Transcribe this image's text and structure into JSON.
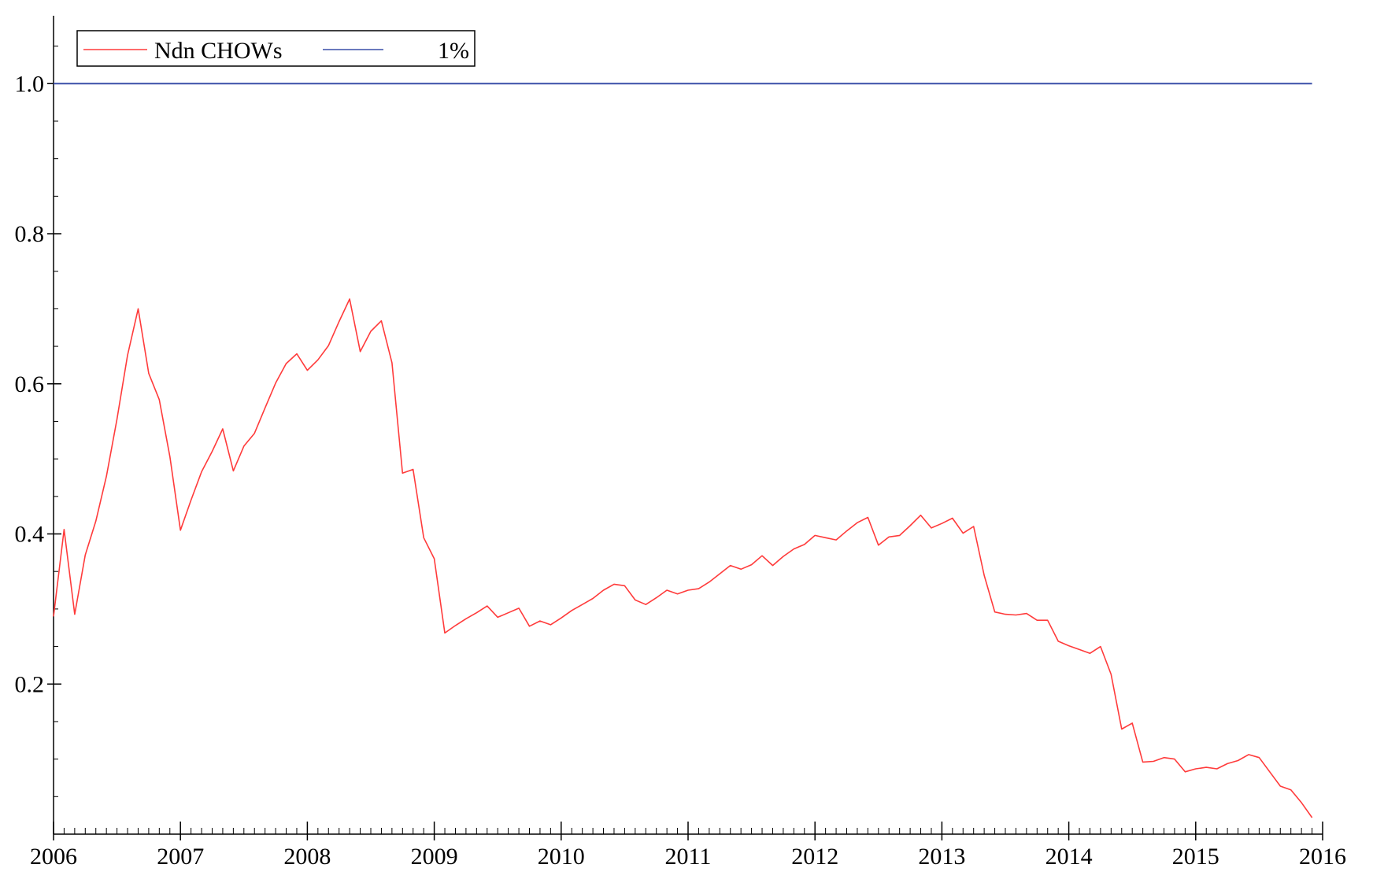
{
  "chart_data": {
    "type": "line",
    "title": "",
    "xlabel": "",
    "ylabel": "",
    "xlim": [
      2006.0,
      2016.0
    ],
    "ylim": [
      0.0,
      1.08
    ],
    "grid": false,
    "legend_position": "top-left",
    "x_ticks": [
      2006,
      2007,
      2008,
      2009,
      2010,
      2011,
      2012,
      2013,
      2014,
      2015,
      2016
    ],
    "x_tick_labels": [
      "2006",
      "2007",
      "2008",
      "2009",
      "2010",
      "2011",
      "2012",
      "2013",
      "2014",
      "2015",
      "2016"
    ],
    "y_ticks": [
      0.2,
      0.4,
      0.6,
      0.8,
      1.0
    ],
    "y_tick_labels": [
      "0.2",
      "0.4",
      "0.6",
      "0.8",
      "1.0"
    ],
    "colors": {
      "ndn": "#ff3b3b",
      "critical": "#3a4fa8"
    },
    "series": [
      {
        "name": "Ndn CHOWs",
        "color": "#ff3b3b",
        "x": [
          2006.0,
          2006.083,
          2006.167,
          2006.25,
          2006.333,
          2006.417,
          2006.5,
          2006.583,
          2006.667,
          2006.75,
          2006.833,
          2006.917,
          2007.0,
          2007.083,
          2007.167,
          2007.25,
          2007.333,
          2007.417,
          2007.5,
          2007.583,
          2007.667,
          2007.75,
          2007.833,
          2007.917,
          2008.0,
          2008.083,
          2008.167,
          2008.25,
          2008.333,
          2008.417,
          2008.5,
          2008.583,
          2008.667,
          2008.75,
          2008.833,
          2008.917,
          2009.0,
          2009.083,
          2009.167,
          2009.25,
          2009.333,
          2009.417,
          2009.5,
          2009.583,
          2009.667,
          2009.75,
          2009.833,
          2009.917,
          2010.0,
          2010.083,
          2010.167,
          2010.25,
          2010.333,
          2010.417,
          2010.5,
          2010.583,
          2010.667,
          2010.75,
          2010.833,
          2010.917,
          2011.0,
          2011.083,
          2011.167,
          2011.25,
          2011.333,
          2011.417,
          2011.5,
          2011.583,
          2011.667,
          2011.75,
          2011.833,
          2011.917,
          2012.0,
          2012.083,
          2012.167,
          2012.25,
          2012.333,
          2012.417,
          2012.5,
          2012.583,
          2012.667,
          2012.75,
          2012.833,
          2012.917,
          2013.0,
          2013.083,
          2013.167,
          2013.25,
          2013.333,
          2013.417,
          2013.5,
          2013.583,
          2013.667,
          2013.75,
          2013.833,
          2013.917,
          2014.0,
          2014.083,
          2014.167,
          2014.25,
          2014.333,
          2014.417,
          2014.5,
          2014.583,
          2014.667,
          2014.75,
          2014.833,
          2014.917,
          2015.0,
          2015.083,
          2015.167,
          2015.25,
          2015.333,
          2015.417,
          2015.5,
          2015.583,
          2015.667,
          2015.75,
          2015.833,
          2015.917
        ],
        "y": [
          0.29,
          0.406,
          0.293,
          0.372,
          0.417,
          0.477,
          0.553,
          0.638,
          0.7,
          0.614,
          0.579,
          0.503,
          0.405,
          0.445,
          0.483,
          0.51,
          0.54,
          0.484,
          0.517,
          0.534,
          0.568,
          0.601,
          0.627,
          0.64,
          0.618,
          0.632,
          0.651,
          0.683,
          0.713,
          0.643,
          0.67,
          0.684,
          0.628,
          0.481,
          0.486,
          0.395,
          0.367,
          0.268,
          0.278,
          0.287,
          0.295,
          0.304,
          0.289,
          0.295,
          0.301,
          0.277,
          0.284,
          0.279,
          0.288,
          0.298,
          0.306,
          0.314,
          0.325,
          0.333,
          0.331,
          0.312,
          0.306,
          0.315,
          0.325,
          0.32,
          0.325,
          0.327,
          0.336,
          0.347,
          0.358,
          0.353,
          0.359,
          0.371,
          0.358,
          0.37,
          0.38,
          0.386,
          0.398,
          0.395,
          0.392,
          0.404,
          0.415,
          0.422,
          0.385,
          0.396,
          0.398,
          0.411,
          0.425,
          0.408,
          0.414,
          0.421,
          0.401,
          0.41,
          0.345,
          0.296,
          0.293,
          0.292,
          0.294,
          0.285,
          0.285,
          0.257,
          0.251,
          0.246,
          0.241,
          0.25,
          0.213,
          0.14,
          0.148,
          0.096,
          0.097,
          0.102,
          0.1,
          0.083,
          0.087,
          0.089,
          0.087,
          0.094,
          0.098,
          0.106,
          0.102,
          0.083,
          0.064,
          0.059,
          0.042,
          0.022
        ]
      },
      {
        "name": "1%",
        "color": "#3a4fa8",
        "x": [
          2006.0,
          2015.917
        ],
        "y": [
          1.0,
          1.0
        ]
      }
    ]
  }
}
